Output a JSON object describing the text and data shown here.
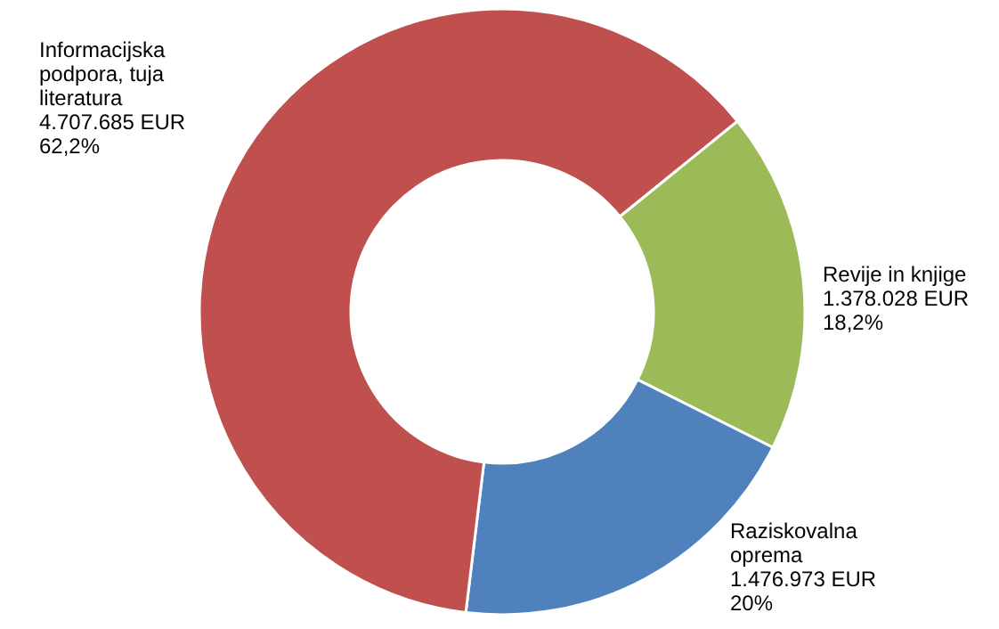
{
  "chart_data": {
    "type": "donut",
    "categories": [
      "Revije in knjige",
      "Raziskovalna oprema",
      "Informacijska podpora, tuja literatura"
    ],
    "values": [
      1378028,
      1476973,
      4707685
    ],
    "colors": [
      "#9bbb59",
      "#4f81bd",
      "#c0504d"
    ],
    "value_labels": [
      "1.378.028 EUR\n18,2%",
      "1.476.973 EUR\n20%",
      "4.707.685 EUR\n62,2%"
    ],
    "legend": false
  }
}
